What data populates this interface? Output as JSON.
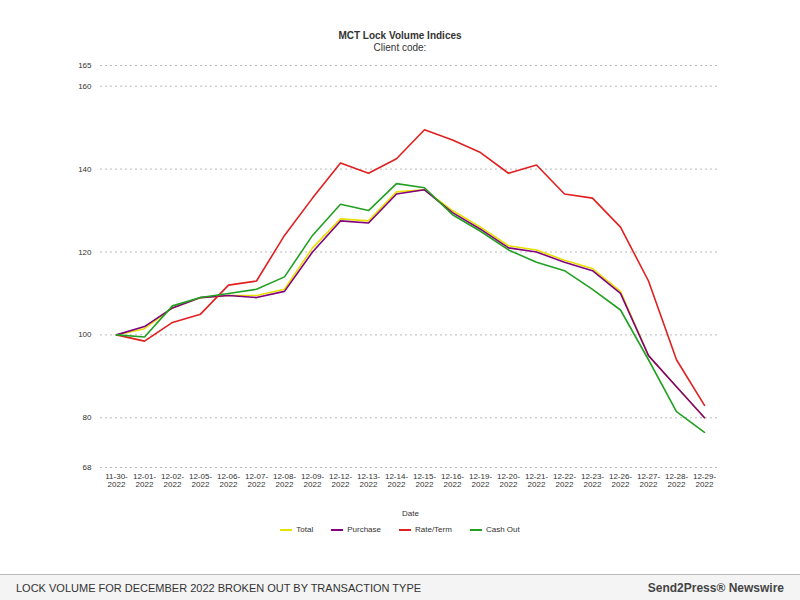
{
  "chart_data": {
    "type": "line",
    "title": "MCT Lock Volume Indices",
    "subtitle": "Client code:",
    "x_label": "Date",
    "caption": "LOCK VOLUME FOR DECEMBER 2022 BROKEN OUT BY TRANSACTION TYPE",
    "source": "Send2Press® Newswire",
    "categories": [
      "11-30-2022",
      "12-01-2022",
      "12-02-2022",
      "12-05-2022",
      "12-06-2022",
      "12-07-2022",
      "12-08-2022",
      "12-09-2022",
      "12-12-2022",
      "12-13-2022",
      "12-14-2022",
      "12-15-2022",
      "12-16-2022",
      "12-19-2022",
      "12-20-2022",
      "12-21-2022",
      "12-22-2022",
      "12-23-2022",
      "12-26-2022",
      "12-27-2022",
      "12-28-2022",
      "12-29-2022"
    ],
    "series": [
      {
        "name": "Total",
        "color": "#e8e000",
        "values": [
          100,
          101.5,
          106.5,
          109,
          109.5,
          109.5,
          111,
          121,
          128,
          127.5,
          134.5,
          135,
          130,
          126,
          121.5,
          120.5,
          118,
          116,
          110.5,
          95,
          87.5,
          80
        ]
      },
      {
        "name": "Purchase",
        "color": "#800080",
        "values": [
          100,
          102,
          106.5,
          109,
          109.5,
          109,
          110.5,
          120,
          127.5,
          127,
          134,
          135,
          129.5,
          125.5,
          121,
          120,
          117.5,
          115.5,
          110,
          95,
          87.5,
          80
        ]
      },
      {
        "name": "Rate/Term",
        "color": "#e02020",
        "values": [
          100,
          98.5,
          103,
          105,
          112,
          113,
          124,
          133,
          141.5,
          139,
          142.5,
          149.5,
          147,
          144,
          139,
          141,
          134,
          133,
          126,
          113,
          94,
          83
        ]
      },
      {
        "name": "Cash Out",
        "color": "#22a022",
        "values": [
          100,
          99.5,
          107,
          109,
          110,
          111,
          114,
          124,
          131.5,
          130,
          136.5,
          135.5,
          129,
          125,
          120.5,
          117.5,
          115.5,
          111,
          106,
          94,
          81.5,
          76.5
        ]
      }
    ],
    "ylim": [
      68,
      165
    ],
    "yticks": [
      68,
      80,
      100,
      120,
      140,
      160,
      165
    ],
    "grid": true,
    "legend": "bottom"
  }
}
